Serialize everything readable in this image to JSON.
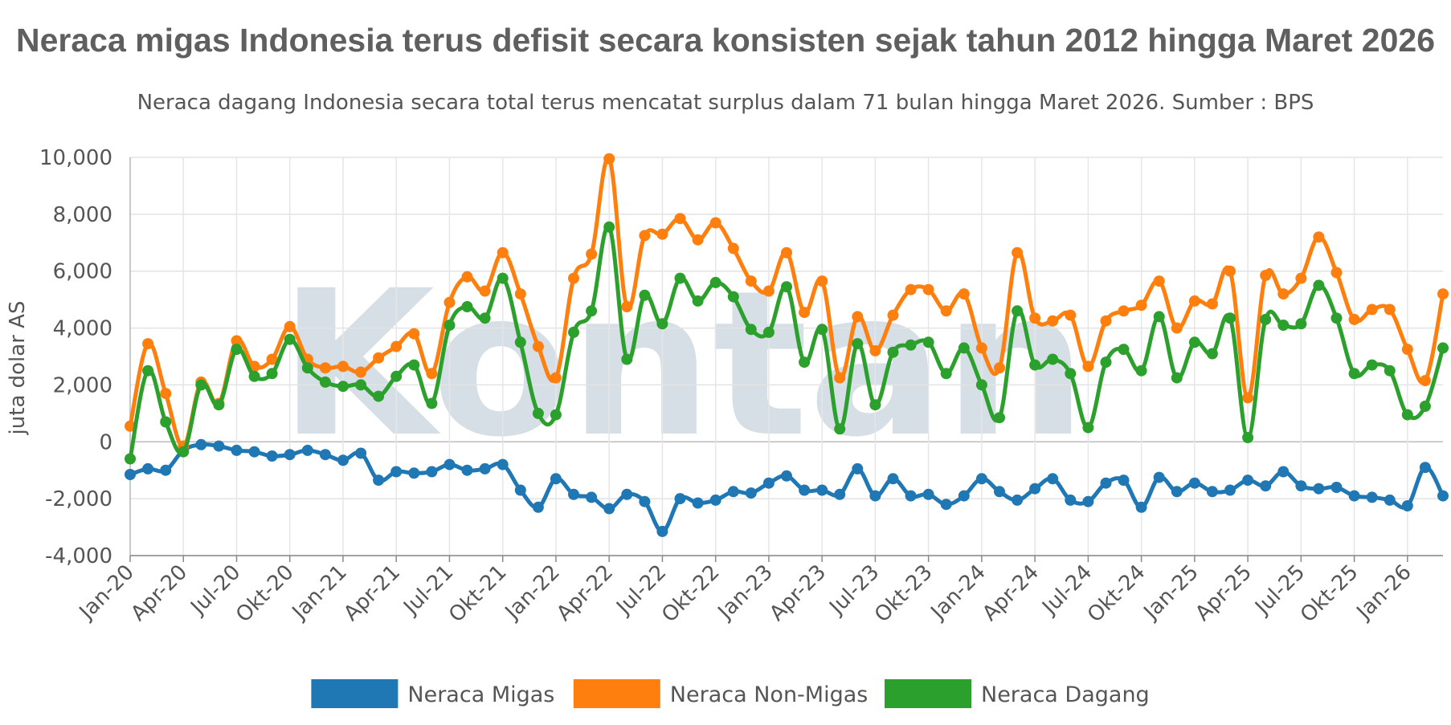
{
  "chart_data": {
    "type": "line",
    "title": "Neraca migas Indonesia terus defisit secara konsisten sejak tahun 2012 hingga Maret 2026",
    "subtitle": "Neraca dagang Indonesia secara total terus mencatat surplus dalam 71 bulan hingga Maret 2026. Sumber : BPS",
    "ylabel": "juta dolar AS",
    "xlabel": "",
    "ylim": [
      -4000,
      10000
    ],
    "yticks": [
      -4000,
      -2000,
      0,
      2000,
      4000,
      6000,
      8000,
      10000
    ],
    "ytick_labels": [
      "-4,000",
      "-2,000",
      "0",
      "2,000",
      "4,000",
      "6,000",
      "8,000",
      "10,000"
    ],
    "grid": true,
    "legend_position": "bottom",
    "watermark": "Kontan",
    "x": [
      "Jan-20",
      "Feb-20",
      "Mar-20",
      "Apr-20",
      "May-20",
      "Jun-20",
      "Jul-20",
      "Aug-20",
      "Sep-20",
      "Okt-20",
      "Nov-20",
      "Dec-20",
      "Jan-21",
      "Feb-21",
      "Mar-21",
      "Apr-21",
      "May-21",
      "Jun-21",
      "Jul-21",
      "Aug-21",
      "Sep-21",
      "Okt-21",
      "Nov-21",
      "Dec-21",
      "Jan-22",
      "Feb-22",
      "Mar-22",
      "Apr-22",
      "May-22",
      "Jun-22",
      "Jul-22",
      "Aug-22",
      "Sep-22",
      "Okt-22",
      "Nov-22",
      "Dec-22",
      "Jan-23",
      "Feb-23",
      "Mar-23",
      "Apr-23",
      "May-23",
      "Jun-23",
      "Jul-23",
      "Aug-23",
      "Sep-23",
      "Okt-23",
      "Nov-23",
      "Dec-23",
      "Jan-24",
      "Feb-24",
      "Mar-24",
      "Apr-24",
      "May-24",
      "Jun-24",
      "Jul-24",
      "Aug-24",
      "Sep-24",
      "Okt-24",
      "Nov-24",
      "Dec-24",
      "Jan-25",
      "Feb-25",
      "Mar-25",
      "Apr-25",
      "May-25",
      "Jun-25",
      "Jul-25",
      "Aug-25",
      "Sep-25",
      "Okt-25",
      "Nov-25",
      "Dec-25",
      "Jan-26",
      "Feb-26",
      "Mar-26"
    ],
    "x_tick_labels": [
      "Jan-20",
      "Apr-20",
      "Jul-20",
      "Okt-20",
      "Jan-21",
      "Apr-21",
      "Jul-21",
      "Okt-21",
      "Jan-22",
      "Apr-22",
      "Jul-22",
      "Okt-22",
      "Jan-23",
      "Apr-23",
      "Jul-23",
      "Okt-23",
      "Jan-24",
      "Apr-24",
      "Jul-24",
      "Okt-24",
      "Jan-25",
      "Apr-25",
      "Jul-25",
      "Okt-25",
      "Jan-26"
    ],
    "series": [
      {
        "name": "Neraca Migas",
        "color": "#1f77b4",
        "values": [
          -1150,
          -950,
          -1000,
          -300,
          -100,
          -150,
          -300,
          -350,
          -500,
          -450,
          -300,
          -450,
          -650,
          -400,
          -1350,
          -1050,
          -1100,
          -1050,
          -800,
          -1000,
          -950,
          -800,
          -1700,
          -2300,
          -1300,
          -1850,
          -1950,
          -2350,
          -1850,
          -2100,
          -3150,
          -2000,
          -2150,
          -2050,
          -1750,
          -1800,
          -1450,
          -1200,
          -1700,
          -1700,
          -1850,
          -950,
          -1900,
          -1300,
          -1900,
          -1850,
          -2200,
          -1900,
          -1300,
          -1750,
          -2050,
          -1650,
          -1300,
          -2050,
          -2100,
          -1450,
          -1350,
          -2300,
          -1250,
          -1750,
          -1450,
          -1750,
          -1700,
          -1350,
          -1550,
          -1050,
          -1550,
          -1650,
          -1600,
          -1900,
          -1950,
          -2050,
          -2250,
          -900,
          -1900
        ]
      },
      {
        "name": "Neraca Non-Migas",
        "color": "#ff7f0e",
        "values": [
          550,
          3450,
          1700,
          -150,
          2100,
          1350,
          3550,
          2650,
          2900,
          4050,
          2900,
          2600,
          2650,
          2450,
          2950,
          3350,
          3800,
          2400,
          4900,
          5800,
          5300,
          6650,
          5200,
          3350,
          2250,
          5750,
          6600,
          9950,
          4750,
          7250,
          7300,
          7850,
          7100,
          7700,
          6800,
          5650,
          5300,
          6650,
          4550,
          5650,
          2250,
          4400,
          3200,
          4450,
          5350,
          5350,
          4600,
          5200,
          3300,
          2600,
          6650,
          4350,
          4250,
          4450,
          2650,
          4250,
          4600,
          4800,
          5650,
          4000,
          4950,
          4850,
          6000,
          1550,
          5850,
          5200,
          5750,
          7200,
          5950,
          4300,
          4650,
          4650,
          3250,
          2150,
          5200
        ]
      },
      {
        "name": "Neraca Dagang",
        "color": "#2ca02c",
        "values": [
          -600,
          2500,
          700,
          -350,
          2000,
          1300,
          3250,
          2300,
          2400,
          3600,
          2600,
          2100,
          1950,
          2000,
          1600,
          2300,
          2700,
          1350,
          4100,
          4750,
          4350,
          5750,
          3500,
          1000,
          950,
          3850,
          4600,
          7550,
          2900,
          5150,
          4150,
          5750,
          4950,
          5600,
          5100,
          3950,
          3850,
          5450,
          2800,
          3950,
          450,
          3450,
          1300,
          3150,
          3400,
          3500,
          2400,
          3300,
          2000,
          850,
          4600,
          2700,
          2900,
          2400,
          500,
          2800,
          3250,
          2500,
          4400,
          2250,
          3500,
          3100,
          4350,
          150,
          4300,
          4100,
          4150,
          5500,
          4350,
          2400,
          2700,
          2500,
          950,
          1250,
          3300
        ]
      }
    ]
  }
}
